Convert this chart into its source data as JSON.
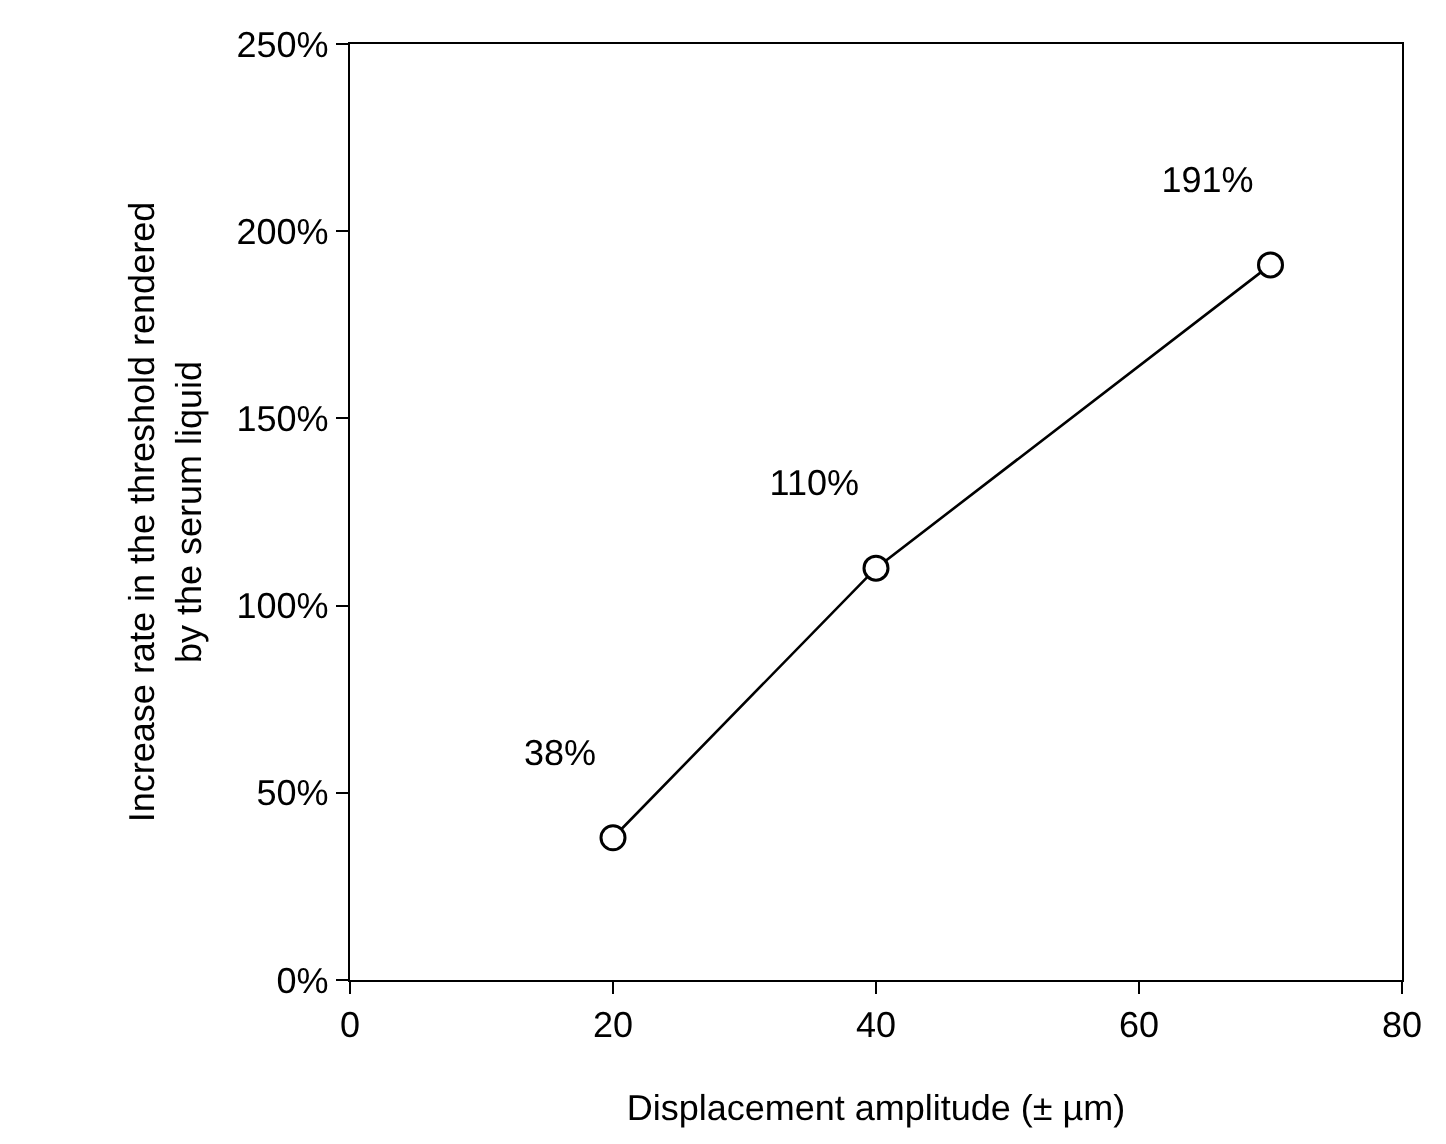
{
  "chart_data": {
    "type": "line",
    "xlabel": "Displacement amplitude (± µm)",
    "ylabel": "Increase rate in the threshold rendered\nby the serum liquid",
    "x": [
      20,
      40,
      70
    ],
    "series": [
      {
        "color": "#000000",
        "values": [
          38,
          110,
          191
        ],
        "value_labels": [
          "38%",
          "110%",
          "191%"
        ]
      }
    ],
    "xlim": [
      0,
      80
    ],
    "xticks": [
      0,
      20,
      40,
      60,
      80
    ],
    "ylim": [
      0,
      250
    ],
    "yticks": [
      {
        "value": 0,
        "label": "0%"
      },
      {
        "value": 50,
        "label": "50%"
      },
      {
        "value": 100,
        "label": "100%"
      },
      {
        "value": 150,
        "label": "150%"
      },
      {
        "value": 200,
        "label": "200%"
      },
      {
        "value": 250,
        "label": "250%"
      }
    ],
    "marker": "circle",
    "line_style": "solid",
    "legend": false
  }
}
